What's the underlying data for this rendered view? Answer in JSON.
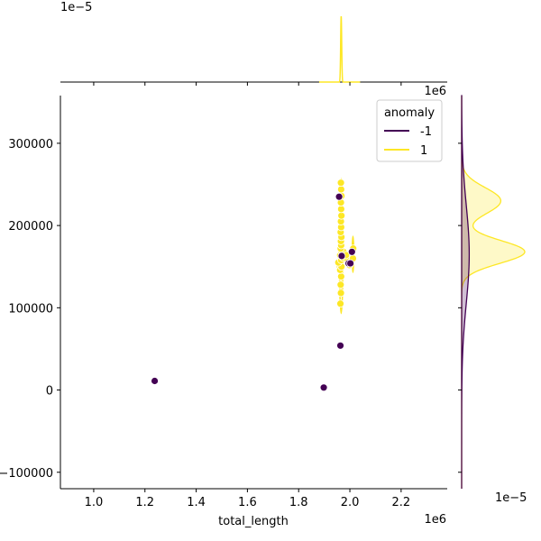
{
  "chart_data": {
    "type": "scatter",
    "kind": "jointplot",
    "title": "",
    "xlabel": "total_length",
    "ylabel": "",
    "x_offset_label": "1e6",
    "y_offset_label": "1e6",
    "top_marginal_offset_label": "1e−5",
    "right_marginal_offset_label": "1e−5",
    "xlim": [
      0.87,
      2.38
    ],
    "ylim": [
      -120000,
      358000
    ],
    "x_ticks": [
      1.0,
      1.2,
      1.4,
      1.6,
      1.8,
      2.0,
      2.2
    ],
    "x_tick_labels": [
      "1.0",
      "1.2",
      "1.4",
      "1.6",
      "1.8",
      "2.0",
      "2.2"
    ],
    "y_ticks": [
      -100000,
      0,
      100000,
      200000,
      300000
    ],
    "y_tick_labels": [
      "−100000",
      "0",
      "100000",
      "200000",
      "300000"
    ],
    "grid": false,
    "legend": {
      "title": "anomaly",
      "placement": "top-right",
      "entries": [
        {
          "label": "-1",
          "color": "#440154"
        },
        {
          "label": "1",
          "color": "#fde725"
        }
      ]
    },
    "series": [
      {
        "name": "-1",
        "color": "#440154",
        "points": [
          {
            "x": 1.238,
            "y": 11000
          },
          {
            "x": 1.898,
            "y": 3000
          },
          {
            "x": 1.963,
            "y": 54000
          },
          {
            "x": 1.958,
            "y": 235000
          },
          {
            "x": 1.968,
            "y": 163000
          },
          {
            "x": 1.995,
            "y": 154000
          },
          {
            "x": 2.002,
            "y": 154000
          },
          {
            "x": 2.008,
            "y": 168000
          }
        ]
      },
      {
        "name": "1",
        "color": "#fde725",
        "points": [
          {
            "x": 1.963,
            "y": 105000
          },
          {
            "x": 1.965,
            "y": 118000
          },
          {
            "x": 1.964,
            "y": 128000
          },
          {
            "x": 1.966,
            "y": 138000
          },
          {
            "x": 1.962,
            "y": 146000
          },
          {
            "x": 1.967,
            "y": 150000
          },
          {
            "x": 1.955,
            "y": 155000
          },
          {
            "x": 1.966,
            "y": 158000
          },
          {
            "x": 1.973,
            "y": 161000
          },
          {
            "x": 1.962,
            "y": 164000
          },
          {
            "x": 1.968,
            "y": 167000
          },
          {
            "x": 1.975,
            "y": 168000
          },
          {
            "x": 1.964,
            "y": 172000
          },
          {
            "x": 1.966,
            "y": 176000
          },
          {
            "x": 1.965,
            "y": 181000
          },
          {
            "x": 1.967,
            "y": 186000
          },
          {
            "x": 1.964,
            "y": 192000
          },
          {
            "x": 1.966,
            "y": 198000
          },
          {
            "x": 1.965,
            "y": 205000
          },
          {
            "x": 1.967,
            "y": 212000
          },
          {
            "x": 1.966,
            "y": 220000
          },
          {
            "x": 1.965,
            "y": 228000
          },
          {
            "x": 1.967,
            "y": 236000
          },
          {
            "x": 1.966,
            "y": 244000
          },
          {
            "x": 1.965,
            "y": 252000
          },
          {
            "x": 1.992,
            "y": 158000
          },
          {
            "x": 1.998,
            "y": 152000
          },
          {
            "x": 2.012,
            "y": 160000
          },
          {
            "x": 2.013,
            "y": 172000
          },
          {
            "x": 1.985,
            "y": 164000
          }
        ]
      }
    ],
    "kde_contours": [
      {
        "series": "1",
        "cx": 1.966,
        "cy": 175000,
        "rx": 0.007,
        "ry": 82000
      },
      {
        "series": "1",
        "cx": 1.966,
        "cy": 175000,
        "rx": 0.0045,
        "ry": 60000
      },
      {
        "series": "1",
        "cx": 1.966,
        "cy": 165000,
        "rx": 0.003,
        "ry": 30000
      },
      {
        "series": "1",
        "cx": 1.966,
        "cy": 215000,
        "rx": 0.003,
        "ry": 38000
      },
      {
        "series": "1",
        "cx": 2.012,
        "cy": 165000,
        "rx": 0.003,
        "ry": 22000
      },
      {
        "series": "1",
        "cx": 1.955,
        "cy": 152000,
        "rx": 0.004,
        "ry": 8000
      }
    ],
    "top_marginal": {
      "series": "1",
      "peak_x": 1.966,
      "peak_width": 0.002,
      "peak_height": 1.0,
      "base_range": [
        1.88,
        2.04
      ]
    },
    "right_marginal": [
      {
        "series": "1",
        "modes": [
          {
            "y": 168000,
            "h": 1.0,
            "w": 14000
          },
          {
            "y": 230000,
            "h": 0.62,
            "w": 16000
          }
        ]
      },
      {
        "series": "-1",
        "modes": [
          {
            "y": 165000,
            "h": 0.12,
            "w": 60000
          }
        ]
      }
    ]
  }
}
